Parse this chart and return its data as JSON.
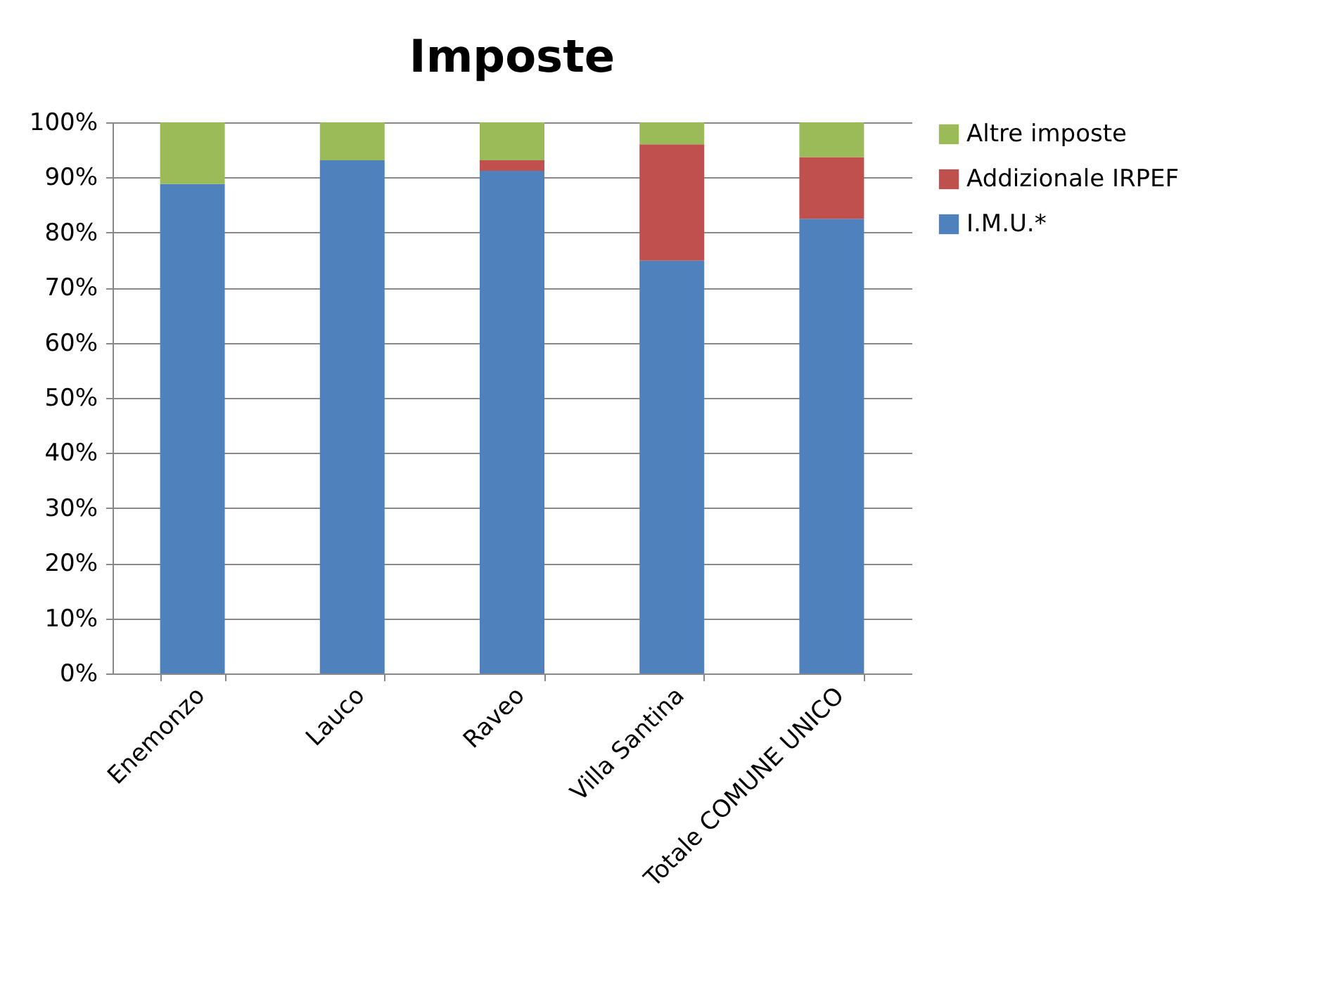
{
  "chart_data": {
    "type": "bar",
    "title": "Imposte",
    "stacked": true,
    "categories": [
      "Enemonzo",
      "Lauco",
      "Raveo",
      "Villa Santina",
      "Totale COMUNE UNICO"
    ],
    "series": [
      {
        "name": "I.M.U.*",
        "color": "#4f81bd",
        "values": [
          88.8,
          93.1,
          91.2,
          74.9,
          82.5
        ]
      },
      {
        "name": "Addizionale IRPEF",
        "color": "#c0504d",
        "values": [
          0,
          0,
          1.9,
          21.1,
          11.2
        ]
      },
      {
        "name": "Altre imposte",
        "color": "#9bbb59",
        "values": [
          11.2,
          6.9,
          6.9,
          4.0,
          6.3
        ]
      }
    ],
    "ylim": [
      0,
      100
    ],
    "yticks": [
      {
        "value": 0,
        "label": "0%"
      },
      {
        "value": 10,
        "label": "10%"
      },
      {
        "value": 20,
        "label": "20%"
      },
      {
        "value": 30,
        "label": "30%"
      },
      {
        "value": 40,
        "label": "40%"
      },
      {
        "value": 50,
        "label": "50%"
      },
      {
        "value": 60,
        "label": "60%"
      },
      {
        "value": 70,
        "label": "70%"
      },
      {
        "value": 80,
        "label": "80%"
      },
      {
        "value": 90,
        "label": "90%"
      },
      {
        "value": 100,
        "label": "100%"
      }
    ],
    "grid": "y",
    "legend": "right"
  }
}
